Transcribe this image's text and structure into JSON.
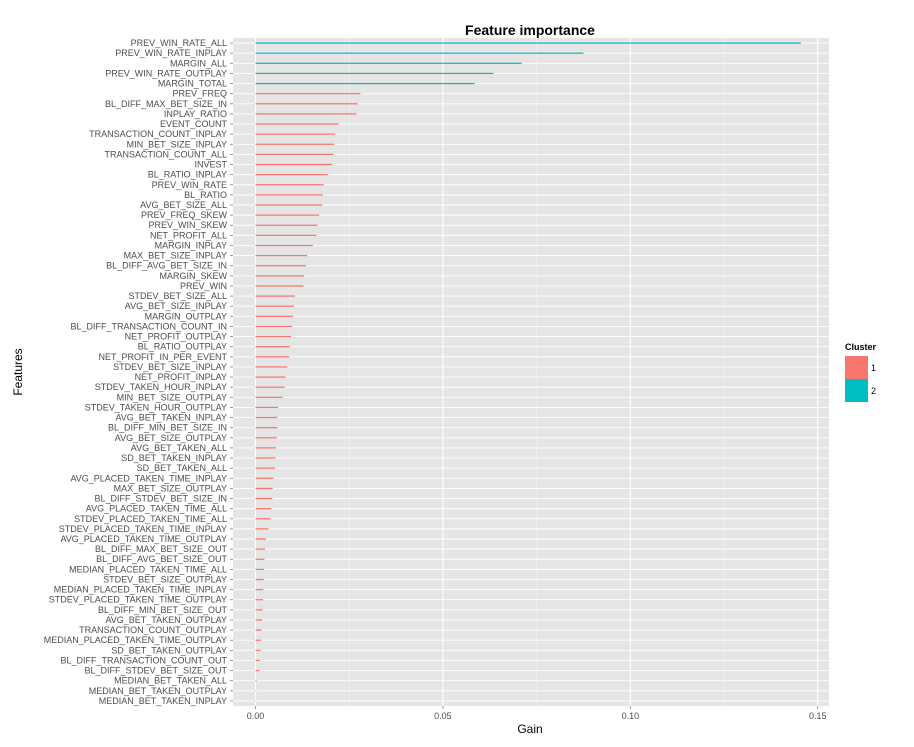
{
  "chart_data": {
    "type": "bar",
    "orientation": "horizontal",
    "title": "Feature importance",
    "xlabel": "Gain",
    "ylabel": "Features",
    "xlim": [
      -0.006,
      0.153
    ],
    "xticks": [
      0.0,
      0.05,
      0.1,
      0.15
    ],
    "xtick_labels": [
      "0.00",
      "0.05",
      "0.10",
      "0.15"
    ],
    "grid": true,
    "legend": {
      "title": "Cluster",
      "position": "right",
      "entries": [
        {
          "label": "1",
          "color": "#F8766D"
        },
        {
          "label": "2",
          "color": "#00BFC4"
        }
      ]
    },
    "features": [
      {
        "name": "PREV_WIN_RATE_ALL",
        "gain": 0.1455,
        "cluster": "2"
      },
      {
        "name": "PREV_WIN_RATE_INPLAY",
        "gain": 0.0875,
        "cluster": "2"
      },
      {
        "name": "MARGIN_ALL",
        "gain": 0.071,
        "cluster": "2"
      },
      {
        "name": "PREV_WIN_RATE_OUTPLAY",
        "gain": 0.0635,
        "cluster": "2"
      },
      {
        "name": "MARGIN_TOTAL",
        "gain": 0.0585,
        "cluster": "2"
      },
      {
        "name": "PREV_FREQ",
        "gain": 0.028,
        "cluster": "1"
      },
      {
        "name": "BL_DIFF_MAX_BET_SIZE_IN",
        "gain": 0.0273,
        "cluster": "1"
      },
      {
        "name": "INPLAY_RATIO",
        "gain": 0.027,
        "cluster": "1"
      },
      {
        "name": "EVENT_COUNT",
        "gain": 0.0222,
        "cluster": "1"
      },
      {
        "name": "TRANSACTION_COUNT_INPLAY",
        "gain": 0.0213,
        "cluster": "1"
      },
      {
        "name": "MIN_BET_SIZE_INPLAY",
        "gain": 0.021,
        "cluster": "1"
      },
      {
        "name": "TRANSACTION_COUNT_ALL",
        "gain": 0.0207,
        "cluster": "1"
      },
      {
        "name": "INVEST",
        "gain": 0.0205,
        "cluster": "1"
      },
      {
        "name": "BL_RATIO_INPLAY",
        "gain": 0.0193,
        "cluster": "1"
      },
      {
        "name": "PREV_WIN_RATE",
        "gain": 0.0182,
        "cluster": "1"
      },
      {
        "name": "BL_RATIO",
        "gain": 0.018,
        "cluster": "1"
      },
      {
        "name": "AVG_BET_SIZE_ALL",
        "gain": 0.0178,
        "cluster": "1"
      },
      {
        "name": "PREV_FREQ_SKEW",
        "gain": 0.017,
        "cluster": "1"
      },
      {
        "name": "PREV_WIN_SKEW",
        "gain": 0.0165,
        "cluster": "1"
      },
      {
        "name": "NET_PROFIT_ALL",
        "gain": 0.0163,
        "cluster": "1"
      },
      {
        "name": "MARGIN_INPLAY",
        "gain": 0.0153,
        "cluster": "1"
      },
      {
        "name": "MAX_BET_SIZE_INPLAY",
        "gain": 0.0138,
        "cluster": "1"
      },
      {
        "name": "BL_DIFF_AVG_BET_SIZE_IN",
        "gain": 0.0135,
        "cluster": "1"
      },
      {
        "name": "MARGIN_SKEW",
        "gain": 0.013,
        "cluster": "1"
      },
      {
        "name": "PREV_WIN",
        "gain": 0.0128,
        "cluster": "1"
      },
      {
        "name": "STDEV_BET_SIZE_ALL",
        "gain": 0.0105,
        "cluster": "1"
      },
      {
        "name": "AVG_BET_SIZE_INPLAY",
        "gain": 0.0103,
        "cluster": "1"
      },
      {
        "name": "MARGIN_OUTPLAY",
        "gain": 0.01,
        "cluster": "1"
      },
      {
        "name": "BL_DIFF_TRANSACTION_COUNT_IN",
        "gain": 0.0098,
        "cluster": "1"
      },
      {
        "name": "NET_PROFIT_OUTPLAY",
        "gain": 0.0095,
        "cluster": "1"
      },
      {
        "name": "BL_RATIO_OUTPLAY",
        "gain": 0.0092,
        "cluster": "1"
      },
      {
        "name": "NET_PROFIT_IN_PER_EVENT",
        "gain": 0.009,
        "cluster": "1"
      },
      {
        "name": "STDEV_BET_SIZE_INPLAY",
        "gain": 0.0085,
        "cluster": "1"
      },
      {
        "name": "NET_PROFIT_INPLAY",
        "gain": 0.008,
        "cluster": "1"
      },
      {
        "name": "STDEV_TAKEN_HOUR_INPLAY",
        "gain": 0.0078,
        "cluster": "1"
      },
      {
        "name": "MIN_BET_SIZE_OUTPLAY",
        "gain": 0.0073,
        "cluster": "1"
      },
      {
        "name": "STDEV_TAKEN_HOUR_OUTPLAY",
        "gain": 0.006,
        "cluster": "1"
      },
      {
        "name": "AVG_BET_TAKEN_INPLAY",
        "gain": 0.0058,
        "cluster": "1"
      },
      {
        "name": "BL_DIFF_MIN_BET_SIZE_IN",
        "gain": 0.0058,
        "cluster": "1"
      },
      {
        "name": "AVG_BET_SIZE_OUTPLAY",
        "gain": 0.0057,
        "cluster": "1"
      },
      {
        "name": "AVG_BET_TAKEN_ALL",
        "gain": 0.0055,
        "cluster": "1"
      },
      {
        "name": "SD_BET_TAKEN_INPLAY",
        "gain": 0.0053,
        "cluster": "1"
      },
      {
        "name": "SD_BET_TAKEN_ALL",
        "gain": 0.0052,
        "cluster": "1"
      },
      {
        "name": "AVG_PLACED_TAKEN_TIME_INPLAY",
        "gain": 0.0048,
        "cluster": "1"
      },
      {
        "name": "MAX_BET_SIZE_OUTPLAY",
        "gain": 0.0046,
        "cluster": "1"
      },
      {
        "name": "BL_DIFF_STDEV_BET_SIZE_IN",
        "gain": 0.0045,
        "cluster": "1"
      },
      {
        "name": "AVG_PLACED_TAKEN_TIME_ALL",
        "gain": 0.0042,
        "cluster": "1"
      },
      {
        "name": "STDEV_PLACED_TAKEN_TIME_ALL",
        "gain": 0.004,
        "cluster": "1"
      },
      {
        "name": "STDEV_PLACED_TAKEN_TIME_INPLAY",
        "gain": 0.0035,
        "cluster": "1"
      },
      {
        "name": "AVG_PLACED_TAKEN_TIME_OUTPLAY",
        "gain": 0.0028,
        "cluster": "1"
      },
      {
        "name": "BL_DIFF_MAX_BET_SIZE_OUT",
        "gain": 0.0025,
        "cluster": "1"
      },
      {
        "name": "BL_DIFF_AVG_BET_SIZE_OUT",
        "gain": 0.0024,
        "cluster": "1"
      },
      {
        "name": "MEDIAN_PLACED_TAKEN_TIME_ALL",
        "gain": 0.0023,
        "cluster": "1"
      },
      {
        "name": "STDEV_BET_SIZE_OUTPLAY",
        "gain": 0.0022,
        "cluster": "1"
      },
      {
        "name": "MEDIAN_PLACED_TAKEN_TIME_INPLAY",
        "gain": 0.0021,
        "cluster": "1"
      },
      {
        "name": "STDEV_PLACED_TAKEN_TIME_OUTPLAY",
        "gain": 0.002,
        "cluster": "1"
      },
      {
        "name": "BL_DIFF_MIN_BET_SIZE_OUT",
        "gain": 0.0019,
        "cluster": "1"
      },
      {
        "name": "AVG_BET_TAKEN_OUTPLAY",
        "gain": 0.0018,
        "cluster": "1"
      },
      {
        "name": "TRANSACTION_COUNT_OUTPLAY",
        "gain": 0.0016,
        "cluster": "1"
      },
      {
        "name": "MEDIAN_PLACED_TAKEN_TIME_OUTPLAY",
        "gain": 0.0015,
        "cluster": "1"
      },
      {
        "name": "SD_BET_TAKEN_OUTPLAY",
        "gain": 0.0014,
        "cluster": "1"
      },
      {
        "name": "BL_DIFF_TRANSACTION_COUNT_OUT",
        "gain": 0.0012,
        "cluster": "1"
      },
      {
        "name": "BL_DIFF_STDEV_BET_SIZE_OUT",
        "gain": 0.001,
        "cluster": "1"
      },
      {
        "name": "MEDIAN_BET_TAKEN_ALL",
        "gain": 0.0003,
        "cluster": "1"
      },
      {
        "name": "MEDIAN_BET_TAKEN_OUTPLAY",
        "gain": 0.0002,
        "cluster": "1"
      },
      {
        "name": "MEDIAN_BET_TAKEN_INPLAY",
        "gain": 0.0001,
        "cluster": "1"
      }
    ]
  }
}
